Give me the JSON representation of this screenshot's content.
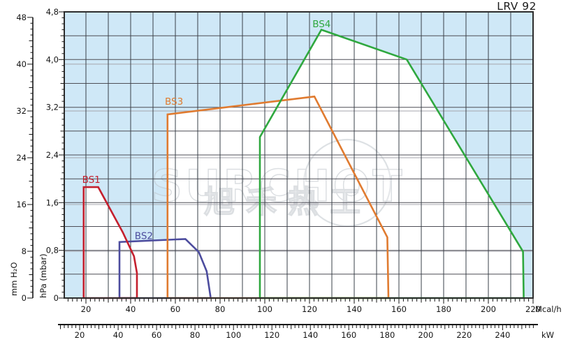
{
  "title": "LRV 92",
  "watermark": {
    "line1": "SURCHOT",
    "line2": "旭禾热工"
  },
  "chart_data": {
    "type": "area",
    "title": "LRV 92",
    "description": "Burner working fields BS1-BS4, furnace pressure vs heat output",
    "background_color": "#cfe8f7",
    "field_fill": "#ffffff",
    "grid": {
      "x_step_mcal": 10,
      "y_step_mbar": 0.4,
      "y_step_mm": 8,
      "mbar_line_color": "#4e4e57",
      "mm_line_color": "#a6a6ad",
      "vertical_line_color": "#3a4048",
      "border_color": "#2d2d2d"
    },
    "axes": {
      "y_mm": {
        "label": "mm H₂O",
        "min": 0,
        "max": 48,
        "tick_values": [
          0,
          8,
          16,
          24,
          32,
          40,
          48
        ],
        "minor_step": 1,
        "mbar_per_unit": 0.0980665
      },
      "y_mbar": {
        "label": "hPa (mbar)",
        "min": 0,
        "max": 4.8,
        "tick_values": [
          0,
          0.8,
          1.6,
          2.4,
          3.2,
          4.0,
          4.8
        ],
        "tick_labels": [
          "0",
          "0,8",
          "1,6",
          "2,4",
          "3,2",
          "4,0",
          "4,8"
        ],
        "minor_step": 0.1
      },
      "x_mcal": {
        "label": "Mcal/h",
        "min": 10.3,
        "max": 220,
        "tick_values": [
          20,
          40,
          60,
          80,
          100,
          120,
          140,
          160,
          180,
          200,
          220
        ],
        "minor_step": 2
      },
      "x_kw": {
        "label": "kW",
        "min": 10,
        "max": 256,
        "tick_values": [
          20,
          40,
          60,
          80,
          100,
          120,
          140,
          160,
          180,
          200,
          220,
          240
        ],
        "minor_step": 2,
        "kw_per_mcal": 1.163
      }
    },
    "series": [
      {
        "name": "BS1",
        "color": "#c4202e",
        "label_xy": [
          18.3,
          1.93
        ],
        "points": [
          [
            19,
            0
          ],
          [
            19,
            1.86
          ],
          [
            25.5,
            1.86
          ],
          [
            36.5,
            1.1
          ],
          [
            41.5,
            0.7
          ],
          [
            42.8,
            0.42
          ],
          [
            42.8,
            0
          ]
        ]
      },
      {
        "name": "BS2",
        "color": "#4c4c9e",
        "label_xy": [
          41.8,
          0.99
        ],
        "points": [
          [
            35,
            0
          ],
          [
            35,
            0.94
          ],
          [
            64.5,
            0.99
          ],
          [
            70.5,
            0.77
          ],
          [
            74,
            0.45
          ],
          [
            75.8,
            0
          ]
        ]
      },
      {
        "name": "BS3",
        "color": "#e07b30",
        "label_xy": [
          55.3,
          3.24
        ],
        "points": [
          [
            56.5,
            0
          ],
          [
            56.5,
            3.08
          ],
          [
            122.2,
            3.38
          ],
          [
            154.8,
            1.02
          ],
          [
            155.3,
            0
          ]
        ]
      },
      {
        "name": "BS4",
        "color": "#2fa83f",
        "label_xy": [
          121.3,
          4.54
        ],
        "points": [
          [
            97.8,
            0
          ],
          [
            97.8,
            2.7
          ],
          [
            125.3,
            4.5
          ],
          [
            163.5,
            4.0
          ],
          [
            215.5,
            0.78
          ],
          [
            215.8,
            0
          ]
        ]
      }
    ],
    "stroke_order": [
      "BS2",
      "BS1",
      "BS3",
      "BS4"
    ]
  }
}
